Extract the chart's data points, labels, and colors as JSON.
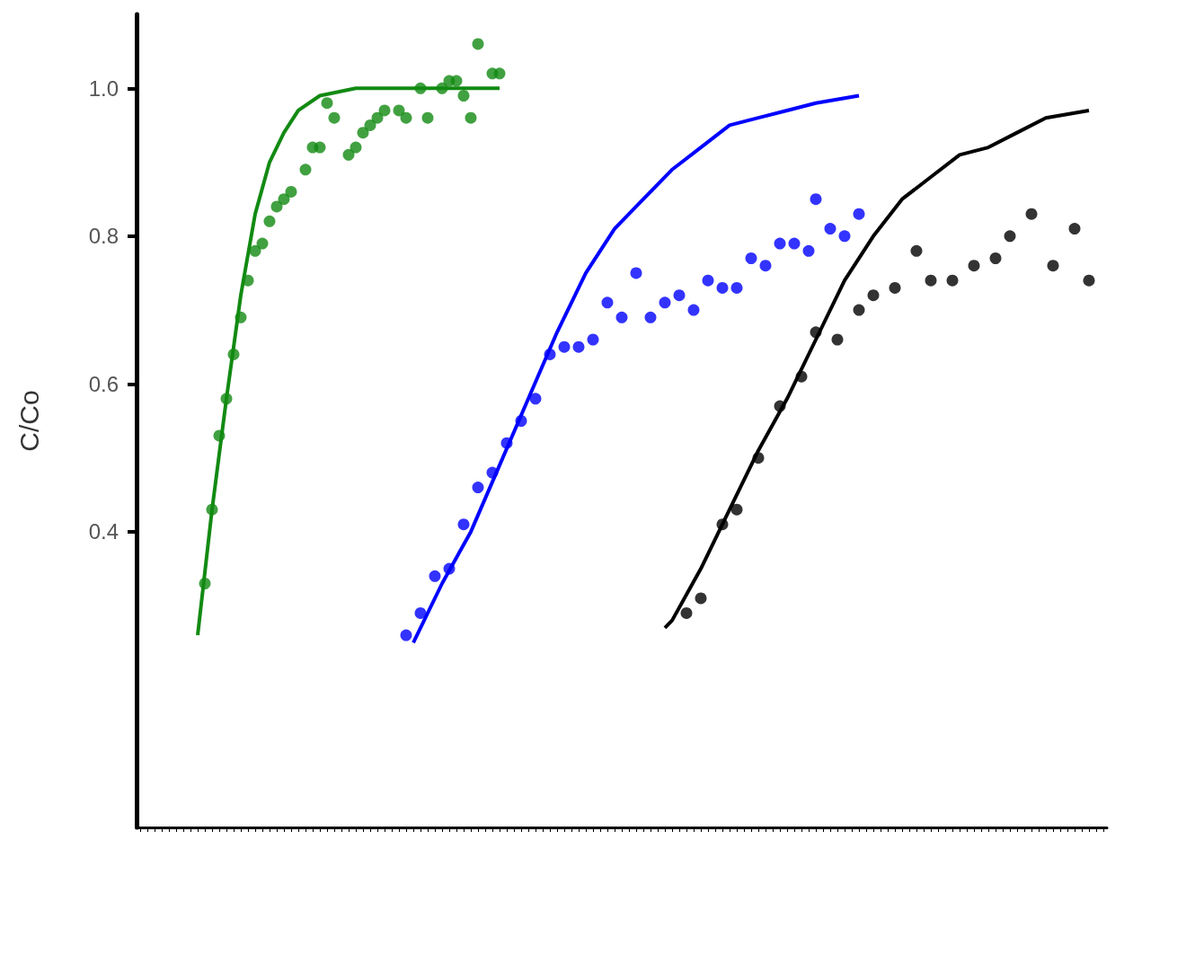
{
  "chart_data": {
    "type": "scatter",
    "ylabel": "C/Co",
    "marker": "circle",
    "categories": [
      null,
      null,
      null,
      null,
      null,
      null,
      null,
      null,
      null,
      null,
      null,
      null,
      null,
      null,
      null,
      null,
      null,
      null,
      null,
      null,
      null,
      null,
      null,
      null,
      null,
      null,
      null,
      null,
      null,
      null,
      null,
      null,
      null,
      null,
      null,
      null,
      null,
      null,
      null,
      null,
      null,
      null,
      null,
      null,
      null,
      null,
      null,
      null,
      null,
      null,
      null,
      null,
      null,
      null,
      null,
      null,
      null,
      null,
      null,
      null,
      null,
      null,
      null,
      null,
      null,
      null,
      null,
      null,
      null,
      null,
      null,
      null,
      null,
      null,
      null,
      null,
      null,
      null,
      null,
      null,
      null,
      null,
      null,
      null,
      null,
      null,
      null,
      null,
      null,
      null,
      null,
      null,
      null,
      null,
      null,
      null,
      null,
      null,
      null,
      null,
      null,
      null,
      null,
      null,
      null,
      null,
      null,
      null,
      null,
      null,
      null,
      null,
      null,
      null,
      null,
      null,
      null,
      null,
      null,
      null,
      null,
      null,
      null,
      null,
      null,
      null,
      null,
      null,
      null,
      null,
      null,
      null,
      null,
      null,
      null
    ],
    "ylim": [
      0,
      1.1
    ],
    "yticks": [
      {
        "value": 0.4,
        "label": "0.4"
      },
      {
        "value": 0.6,
        "label": "0.6"
      },
      {
        "value": 0.8,
        "label": "0.8"
      },
      {
        "value": 1,
        "label": "1.0"
      }
    ],
    "tick_labels": "y",
    "series": [
      {
        "type": "scatter",
        "color": "#128a12",
        "values": [
          null,
          null,
          null,
          null,
          null,
          null,
          null,
          null,
          null,
          0.33,
          0.43,
          0.53,
          0.58,
          0.64,
          0.69,
          0.74,
          0.78,
          0.79,
          0.82,
          0.84,
          0.85,
          0.86,
          null,
          0.89,
          0.92,
          0.92,
          0.98,
          0.96,
          null,
          0.91,
          0.92,
          0.94,
          0.95,
          0.96,
          0.97,
          null,
          0.97,
          0.96,
          null,
          1.0,
          0.96,
          null,
          1.0,
          1.01,
          1.01,
          0.99,
          0.96,
          1.06,
          null,
          1.02,
          1.02,
          null,
          null,
          null,
          null,
          null,
          null,
          null,
          null,
          null,
          null,
          null,
          null,
          null,
          null,
          null,
          null,
          null,
          null,
          null,
          null,
          null,
          null,
          null,
          null,
          null,
          null,
          null,
          null,
          null,
          null,
          null,
          null,
          null,
          null,
          null,
          null,
          null,
          null,
          null,
          null,
          null,
          null,
          null,
          null,
          null,
          null,
          null,
          null,
          null,
          null,
          null,
          null,
          null,
          null,
          null,
          null,
          null,
          null,
          null,
          null,
          null,
          null,
          null,
          null,
          null,
          null,
          null,
          null,
          null,
          null,
          null,
          null,
          null,
          null,
          null,
          null,
          null,
          null,
          null,
          null,
          null,
          null,
          null,
          null
        ]
      },
      {
        "type": "line",
        "marker": "none",
        "color": "#128a12",
        "values": [
          null,
          null,
          null,
          null,
          null,
          null,
          null,
          null,
          0.26,
          null,
          0.43,
          null,
          0.58,
          null,
          0.72,
          null,
          0.83,
          null,
          0.9,
          null,
          0.94,
          null,
          0.97,
          null,
          null,
          0.99,
          null,
          null,
          null,
          null,
          1.0,
          null,
          null,
          null,
          null,
          null,
          null,
          null,
          null,
          null,
          1.0,
          null,
          null,
          null,
          null,
          null,
          null,
          null,
          null,
          null,
          1.0,
          null,
          null,
          null,
          null,
          null,
          null,
          null,
          null,
          null,
          null,
          null,
          null,
          null,
          null,
          null,
          null,
          null,
          null,
          null,
          null,
          null,
          null,
          null,
          null,
          null,
          null,
          null,
          null,
          null,
          null,
          null,
          null,
          null,
          null,
          null,
          null,
          null,
          null,
          null,
          null,
          null,
          null,
          null,
          null,
          null,
          null,
          null,
          null,
          null,
          null,
          null,
          null,
          null,
          null,
          null,
          null,
          null,
          null,
          null,
          null,
          null,
          null,
          null,
          null,
          null,
          null,
          null,
          null,
          null,
          null,
          null,
          null,
          null,
          null,
          null,
          null,
          null,
          null,
          null,
          null,
          null,
          null,
          null,
          null
        ]
      },
      {
        "type": "scatter",
        "color": "#0000ff",
        "values": [
          null,
          null,
          null,
          null,
          null,
          null,
          null,
          null,
          null,
          null,
          null,
          null,
          null,
          null,
          null,
          null,
          null,
          null,
          null,
          null,
          null,
          null,
          null,
          null,
          null,
          null,
          null,
          null,
          null,
          null,
          null,
          null,
          null,
          null,
          null,
          null,
          null,
          0.26,
          null,
          0.29,
          null,
          0.34,
          null,
          0.35,
          null,
          0.41,
          null,
          0.46,
          null,
          0.48,
          null,
          0.52,
          null,
          0.55,
          null,
          0.58,
          null,
          0.64,
          null,
          0.65,
          null,
          0.65,
          null,
          0.66,
          null,
          0.71,
          null,
          0.69,
          null,
          0.75,
          null,
          0.69,
          null,
          0.71,
          null,
          0.72,
          null,
          0.7,
          null,
          0.74,
          null,
          0.73,
          null,
          0.73,
          null,
          0.77,
          null,
          0.76,
          null,
          0.79,
          null,
          0.79,
          null,
          0.78,
          0.85,
          null,
          0.81,
          null,
          0.8,
          null,
          0.83,
          null,
          null,
          null,
          null,
          null,
          null,
          null,
          null,
          null,
          null,
          null,
          null,
          null,
          null,
          null,
          null,
          null,
          null,
          null,
          null,
          null,
          null,
          null,
          null,
          null,
          null,
          null,
          null,
          null,
          null,
          null,
          null,
          null,
          null
        ]
      },
      {
        "type": "line",
        "marker": "none",
        "color": "#0000ff",
        "values": [
          null,
          null,
          null,
          null,
          null,
          null,
          null,
          null,
          null,
          null,
          null,
          null,
          null,
          null,
          null,
          null,
          null,
          null,
          null,
          null,
          null,
          null,
          null,
          null,
          null,
          null,
          null,
          null,
          null,
          null,
          null,
          null,
          null,
          null,
          null,
          null,
          null,
          null,
          0.25,
          null,
          null,
          null,
          0.33,
          null,
          null,
          null,
          0.4,
          null,
          null,
          null,
          0.49,
          null,
          null,
          null,
          0.58,
          null,
          null,
          null,
          0.67,
          null,
          null,
          null,
          0.75,
          null,
          null,
          null,
          0.81,
          null,
          null,
          null,
          0.85,
          null,
          null,
          null,
          0.89,
          null,
          null,
          null,
          0.92,
          null,
          null,
          null,
          0.95,
          null,
          null,
          null,
          0.96,
          null,
          null,
          null,
          0.97,
          null,
          null,
          null,
          0.98,
          null,
          null,
          null,
          null,
          null,
          0.99,
          null,
          null,
          null,
          null,
          null,
          null,
          null,
          null,
          null,
          null,
          null,
          null,
          null,
          null,
          null,
          null,
          null,
          null,
          null,
          null,
          null,
          null,
          null,
          null,
          null,
          null,
          null,
          null,
          null,
          null,
          null,
          null,
          null,
          null
        ]
      },
      {
        "type": "scatter",
        "color": "#000000",
        "values": [
          null,
          null,
          null,
          null,
          null,
          null,
          null,
          null,
          null,
          null,
          null,
          null,
          null,
          null,
          null,
          null,
          null,
          null,
          null,
          null,
          null,
          null,
          null,
          null,
          null,
          null,
          null,
          null,
          null,
          null,
          null,
          null,
          null,
          null,
          null,
          null,
          null,
          null,
          null,
          null,
          null,
          null,
          null,
          null,
          null,
          null,
          null,
          null,
          null,
          null,
          null,
          null,
          null,
          null,
          null,
          null,
          null,
          null,
          null,
          null,
          null,
          null,
          null,
          null,
          null,
          null,
          null,
          null,
          null,
          null,
          null,
          null,
          null,
          null,
          null,
          null,
          0.29,
          null,
          0.31,
          null,
          null,
          0.41,
          null,
          0.43,
          null,
          null,
          0.5,
          null,
          null,
          0.57,
          null,
          null,
          0.61,
          null,
          0.67,
          null,
          null,
          0.66,
          null,
          null,
          0.7,
          null,
          0.72,
          null,
          null,
          0.73,
          null,
          null,
          0.78,
          null,
          0.74,
          null,
          null,
          0.74,
          null,
          null,
          0.76,
          null,
          null,
          0.77,
          null,
          0.8,
          null,
          null,
          0.83,
          null,
          null,
          0.76,
          null,
          null,
          0.81,
          null,
          0.74,
          null,
          null
        ]
      },
      {
        "type": "line",
        "marker": "none",
        "color": "#000000",
        "values": [
          null,
          null,
          null,
          null,
          null,
          null,
          null,
          null,
          null,
          null,
          null,
          null,
          null,
          null,
          null,
          null,
          null,
          null,
          null,
          null,
          null,
          null,
          null,
          null,
          null,
          null,
          null,
          null,
          null,
          null,
          null,
          null,
          null,
          null,
          null,
          null,
          null,
          null,
          null,
          null,
          null,
          null,
          null,
          null,
          null,
          null,
          null,
          null,
          null,
          null,
          null,
          null,
          null,
          null,
          null,
          null,
          null,
          null,
          null,
          null,
          null,
          null,
          null,
          null,
          null,
          null,
          null,
          null,
          null,
          null,
          null,
          null,
          null,
          0.27,
          0.28,
          null,
          null,
          null,
          0.35,
          null,
          null,
          null,
          0.43,
          null,
          null,
          null,
          0.51,
          null,
          null,
          null,
          0.58,
          null,
          null,
          null,
          0.66,
          null,
          null,
          null,
          0.74,
          null,
          null,
          null,
          0.8,
          null,
          null,
          null,
          0.85,
          null,
          null,
          null,
          0.88,
          null,
          null,
          null,
          0.91,
          null,
          null,
          null,
          0.92,
          null,
          null,
          null,
          0.94,
          null,
          null,
          null,
          0.96,
          null,
          null,
          null,
          null,
          null,
          0.97,
          null,
          null
        ]
      }
    ]
  }
}
